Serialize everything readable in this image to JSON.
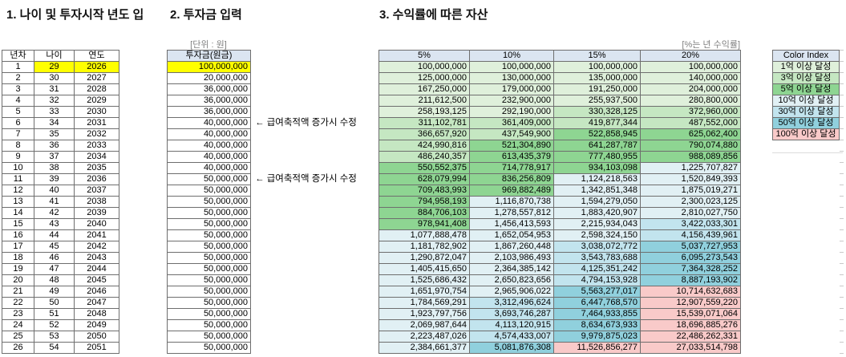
{
  "titles": {
    "section1": "1. 나이 및 투자시작 년도 입",
    "section2": "2. 투자금 입력",
    "section3": "3. 수익률에 따른 자산"
  },
  "labels": {
    "unit": "[단위 : 원]",
    "rate": "[%는 년 수익률]"
  },
  "left_table": {
    "headers": [
      "년차",
      "나이",
      "연도"
    ],
    "rows": [
      [
        1,
        29,
        2026
      ],
      [
        2,
        30,
        2027
      ],
      [
        3,
        31,
        2028
      ],
      [
        4,
        32,
        2029
      ],
      [
        5,
        33,
        2030
      ],
      [
        6,
        34,
        2031
      ],
      [
        7,
        35,
        2032
      ],
      [
        8,
        36,
        2033
      ],
      [
        9,
        37,
        2034
      ],
      [
        10,
        38,
        2035
      ],
      [
        11,
        39,
        2036
      ],
      [
        12,
        40,
        2037
      ],
      [
        13,
        41,
        2038
      ],
      [
        14,
        42,
        2039
      ],
      [
        15,
        43,
        2040
      ],
      [
        16,
        44,
        2041
      ],
      [
        17,
        45,
        2042
      ],
      [
        18,
        46,
        2043
      ],
      [
        19,
        47,
        2044
      ],
      [
        20,
        48,
        2045
      ],
      [
        21,
        49,
        2046
      ],
      [
        22,
        50,
        2047
      ],
      [
        23,
        51,
        2048
      ],
      [
        24,
        52,
        2049
      ],
      [
        25,
        53,
        2050
      ],
      [
        26,
        54,
        2051
      ]
    ],
    "highlight_row": 1
  },
  "invest_table": {
    "header": "투자금(원금)",
    "values": [
      100000000,
      20000000,
      36000000,
      36000000,
      36000000,
      40000000,
      40000000,
      40000000,
      40000000,
      40000000,
      50000000,
      50000000,
      50000000,
      50000000,
      50000000,
      50000000,
      50000000,
      50000000,
      50000000,
      50000000,
      50000000,
      50000000,
      50000000,
      50000000,
      50000000,
      50000000
    ],
    "highlight_row": 1,
    "annotations": [
      {
        "row": 6,
        "text": "← 급여축적액 증가시 수정"
      },
      {
        "row": 11,
        "text": "← 급여축적액 증가시 수정"
      }
    ]
  },
  "asset_table": {
    "headers": [
      "5%",
      "10%",
      "15%",
      "20%"
    ],
    "rows": [
      [
        100000000,
        100000000,
        100000000,
        100000000
      ],
      [
        125000000,
        130000000,
        135000000,
        140000000
      ],
      [
        167250000,
        179000000,
        191250000,
        204000000
      ],
      [
        211612500,
        232900000,
        255937500,
        280800000
      ],
      [
        258193125,
        292190000,
        330328125,
        372960000
      ],
      [
        311102781,
        361409000,
        419877344,
        487552000
      ],
      [
        366657920,
        437549900,
        522858945,
        625062400
      ],
      [
        424990816,
        521304890,
        641287787,
        790074880
      ],
      [
        486240357,
        613435379,
        777480955,
        988089856
      ],
      [
        550552375,
        714778917,
        934103098,
        1225707827
      ],
      [
        628079994,
        836256809,
        1124218563,
        1520849393
      ],
      [
        709483993,
        969882489,
        1342851348,
        1875019271
      ],
      [
        794958193,
        1116870738,
        1594279050,
        2300023125
      ],
      [
        884706103,
        1278557812,
        1883420907,
        2810027750
      ],
      [
        978941408,
        1456413593,
        2215934043,
        3422033301
      ],
      [
        1077888478,
        1652054953,
        2598324150,
        4156439961
      ],
      [
        1181782902,
        1867260448,
        3038072772,
        5037727953
      ],
      [
        1290872047,
        2103986493,
        3543783688,
        6095273543
      ],
      [
        1405415650,
        2364385142,
        4125351242,
        7364328252
      ],
      [
        1525686432,
        2650823656,
        4794153928,
        8887193902
      ],
      [
        1651970754,
        2965906022,
        5563277017,
        10714632683
      ],
      [
        1784569291,
        3312496624,
        6447768570,
        12907559220
      ],
      [
        1923797756,
        3693746287,
        7464933855,
        15539071064
      ],
      [
        2069987644,
        4113120915,
        8634673933,
        18696885276
      ],
      [
        2223487026,
        4574433007,
        9979875023,
        22486262331
      ],
      [
        2384661377,
        5081876308,
        11526856277,
        27033514798
      ]
    ]
  },
  "color_index": {
    "header": "Color Index",
    "tiers": [
      {
        "label": "1억 이상 달성",
        "min": 100000000,
        "color": "#dff0db"
      },
      {
        "label": "3억 이상 달성",
        "min": 300000000,
        "color": "#c5e7c2"
      },
      {
        "label": "5억 이상 달성",
        "min": 500000000,
        "color": "#8ed592"
      },
      {
        "label": "10억 이상 달성",
        "min": 1000000000,
        "color": "#e1f0f4"
      },
      {
        "label": "30억 이상 달성",
        "min": 3000000000,
        "color": "#c2e4ee"
      },
      {
        "label": "50억 이상 달성",
        "min": 5000000000,
        "color": "#90d0dd"
      },
      {
        "label": "100억 이상 달성",
        "min": 10000000000,
        "color": "#f9cac9"
      }
    ]
  },
  "colors": {
    "header_bg": "#dbe5f1",
    "highlight": "#ffff00",
    "border": "#6e6e6e",
    "label_gray": "#7f7f7f"
  }
}
